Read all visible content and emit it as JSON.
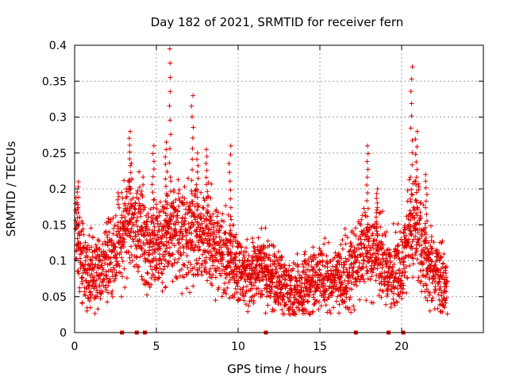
{
  "chart_data": {
    "type": "scatter",
    "title": "Day 182 of 2021, SRMTID for receiver fern",
    "xlabel": "GPS time / hours",
    "ylabel": "SRMTID / TECUs",
    "xlim": [
      0,
      25
    ],
    "ylim": [
      0,
      0.4
    ],
    "x_ticks": [
      0,
      5,
      10,
      15,
      20
    ],
    "x_tick_labels": [
      "0",
      "5",
      "10",
      "15",
      "20"
    ],
    "y_ticks": [
      0,
      0.05,
      0.1,
      0.15,
      0.2,
      0.25,
      0.3,
      0.35,
      0.4
    ],
    "y_tick_labels": [
      "0",
      "0.05",
      "0.1",
      "0.15",
      "0.2",
      "0.25",
      "0.3",
      "0.35",
      "0.4"
    ],
    "grid": true,
    "marker": "+",
    "color": "#e00000",
    "gap_markers_x": [
      2.9,
      3.8,
      4.3,
      11.7,
      17.2,
      19.2,
      20.1
    ],
    "trend": [
      [
        0,
        0.15
      ],
      [
        0.3,
        0.1
      ],
      [
        1.0,
        0.085
      ],
      [
        1.5,
        0.09
      ],
      [
        2.0,
        0.1
      ],
      [
        2.5,
        0.12
      ],
      [
        3.0,
        0.14
      ],
      [
        3.5,
        0.16
      ],
      [
        4.0,
        0.15
      ],
      [
        4.5,
        0.12
      ],
      [
        5.0,
        0.12
      ],
      [
        5.5,
        0.13
      ],
      [
        6.0,
        0.14
      ],
      [
        6.5,
        0.14
      ],
      [
        7.0,
        0.14
      ],
      [
        7.5,
        0.135
      ],
      [
        8.0,
        0.13
      ],
      [
        8.5,
        0.12
      ],
      [
        9.0,
        0.11
      ],
      [
        9.5,
        0.1
      ],
      [
        10.0,
        0.09
      ],
      [
        10.5,
        0.085
      ],
      [
        11.0,
        0.085
      ],
      [
        11.5,
        0.09
      ],
      [
        12.0,
        0.08
      ],
      [
        12.5,
        0.07
      ],
      [
        13.0,
        0.065
      ],
      [
        13.5,
        0.06
      ],
      [
        14.0,
        0.06
      ],
      [
        14.5,
        0.07
      ],
      [
        15.0,
        0.075
      ],
      [
        15.5,
        0.07
      ],
      [
        16.0,
        0.07
      ],
      [
        16.5,
        0.08
      ],
      [
        17.0,
        0.09
      ],
      [
        17.5,
        0.11
      ],
      [
        18.0,
        0.12
      ],
      [
        18.5,
        0.115
      ],
      [
        19.0,
        0.09
      ],
      [
        19.5,
        0.08
      ],
      [
        20.0,
        0.085
      ],
      [
        20.5,
        0.15
      ],
      [
        21.0,
        0.14
      ],
      [
        21.5,
        0.1
      ],
      [
        22.0,
        0.08
      ],
      [
        22.5,
        0.07
      ],
      [
        22.8,
        0.065
      ]
    ],
    "spikes": [
      {
        "x": 0.2,
        "ymax": 0.21
      },
      {
        "x": 3.4,
        "ymax": 0.28
      },
      {
        "x": 4.8,
        "ymax": 0.26
      },
      {
        "x": 5.6,
        "ymax": 0.265
      },
      {
        "x": 5.85,
        "ymax": 0.395
      },
      {
        "x": 7.2,
        "ymax": 0.33
      },
      {
        "x": 7.5,
        "ymax": 0.25
      },
      {
        "x": 8.1,
        "ymax": 0.255
      },
      {
        "x": 9.5,
        "ymax": 0.26
      },
      {
        "x": 17.9,
        "ymax": 0.26
      },
      {
        "x": 18.5,
        "ymax": 0.2
      },
      {
        "x": 20.6,
        "ymax": 0.37
      },
      {
        "x": 20.9,
        "ymax": 0.28
      },
      {
        "x": 21.5,
        "ymax": 0.22
      }
    ]
  }
}
